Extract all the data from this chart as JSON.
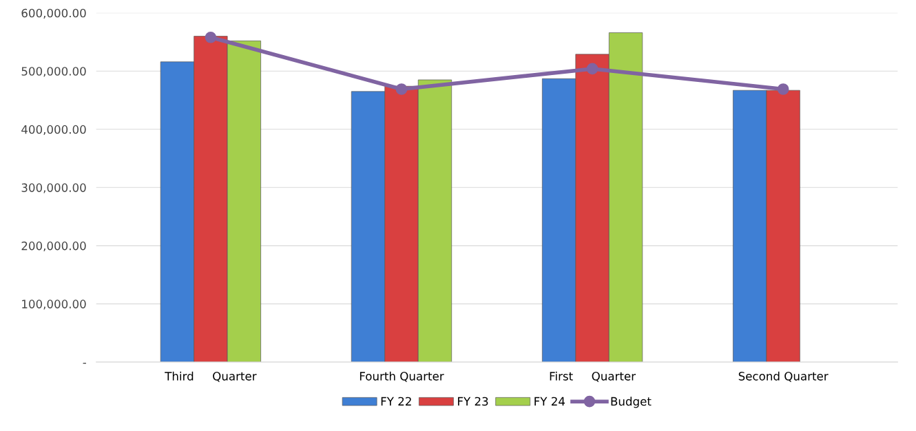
{
  "chart_data": {
    "type": "bar",
    "categories": [
      "Third     Quarter",
      "Fourth Quarter",
      "First     Quarter",
      "Second Quarter"
    ],
    "series": [
      {
        "name": "FY 22",
        "color": "#3f7fd4",
        "values": [
          516000,
          465000,
          487000,
          467000
        ]
      },
      {
        "name": "FY 23",
        "color": "#d94040",
        "values": [
          560000,
          474000,
          529000,
          467000
        ]
      },
      {
        "name": "FY 24",
        "color": "#a4cf4c",
        "values": [
          552000,
          485000,
          566000,
          null
        ]
      },
      {
        "name": "Budget",
        "type": "line",
        "color": "#8064a2",
        "marker": "circle",
        "values": [
          558000,
          469000,
          504000,
          469000
        ]
      }
    ],
    "ylim": [
      0,
      600000
    ],
    "yticks": [
      {
        "value": 0,
        "label": "-"
      },
      {
        "value": 100000,
        "label": "100,000.00"
      },
      {
        "value": 200000,
        "label": "200,000.00"
      },
      {
        "value": 300000,
        "label": "300,000.00"
      },
      {
        "value": 400000,
        "label": "400,000.00"
      },
      {
        "value": 500000,
        "label": "500,000.00"
      },
      {
        "value": 600000,
        "label": "600,000.00"
      }
    ],
    "grid": "y",
    "legend": "bottom"
  }
}
